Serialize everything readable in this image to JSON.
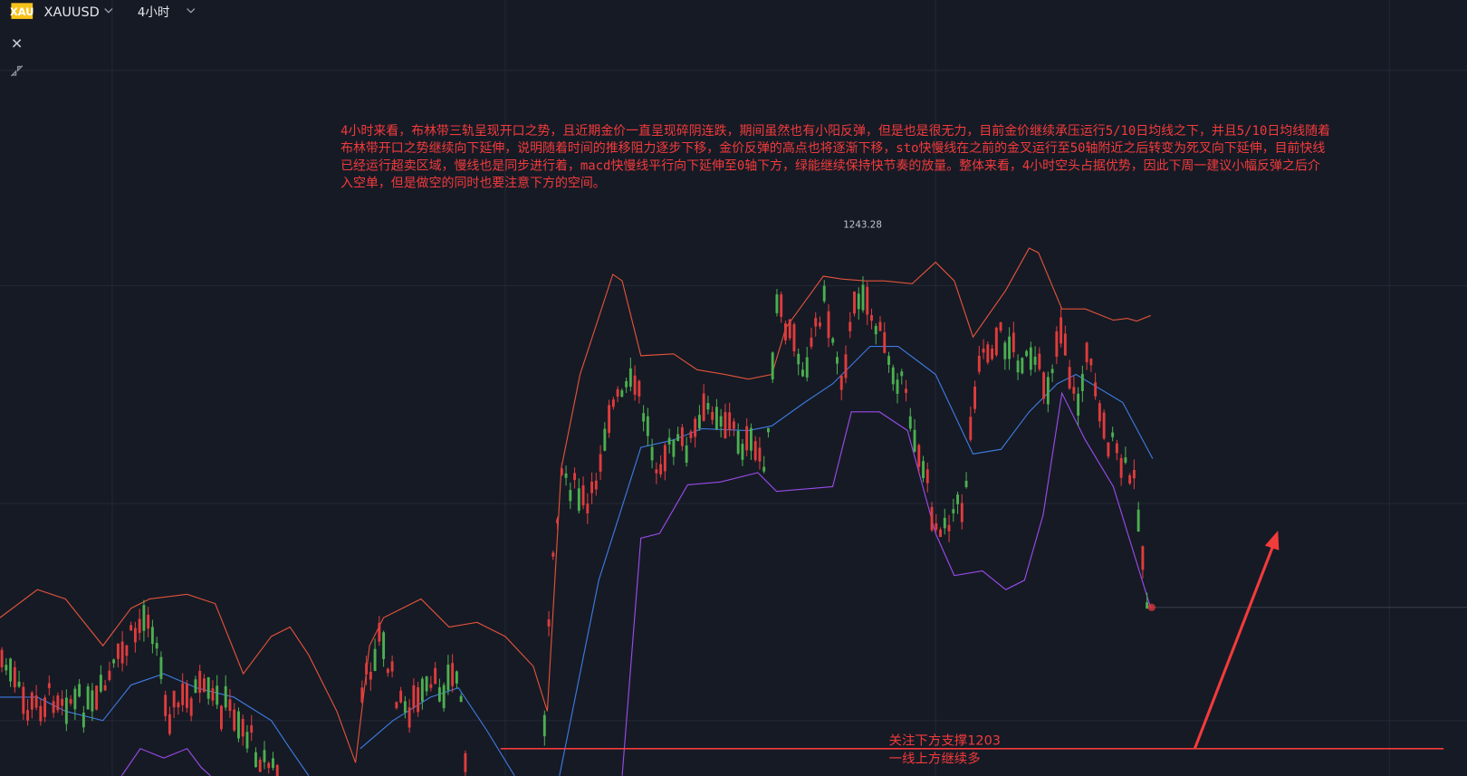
{
  "toolbar": {
    "logo": "XAU",
    "symbol": "XAUUSD",
    "interval": "4小时"
  },
  "annotation": {
    "lines": [
      "4小时来看，布林带三轨呈现开口之势，且近期金价一直呈现碎阴连跌，期间虽然也有小阳反弹，但是也是很无力，目前金价继续承压运行5/10日均线之下，并且5/10日均线随着",
      "布林带开口之势继续向下延伸，说明随着时间的推移阻力逐步下移，金价反弹的高点也将逐渐下移，sto快慢线在之前的金叉运行至50轴附近之后转变为死叉向下延伸，目前快线",
      "已经运行超卖区域，慢线也是同步进行着，macd快慢线平行向下延伸至0轴下方，绿能继续保持快节奏的放量。整体来看，4小时空头占据优势，因此下周一建议小幅反弹之后介",
      "入空单，但是做空的同时也要注意下方的空间。"
    ]
  },
  "high_label": "1243.28",
  "support": {
    "line1": "关注下方支撑1203",
    "line2": "一线上方继续多"
  }
}
